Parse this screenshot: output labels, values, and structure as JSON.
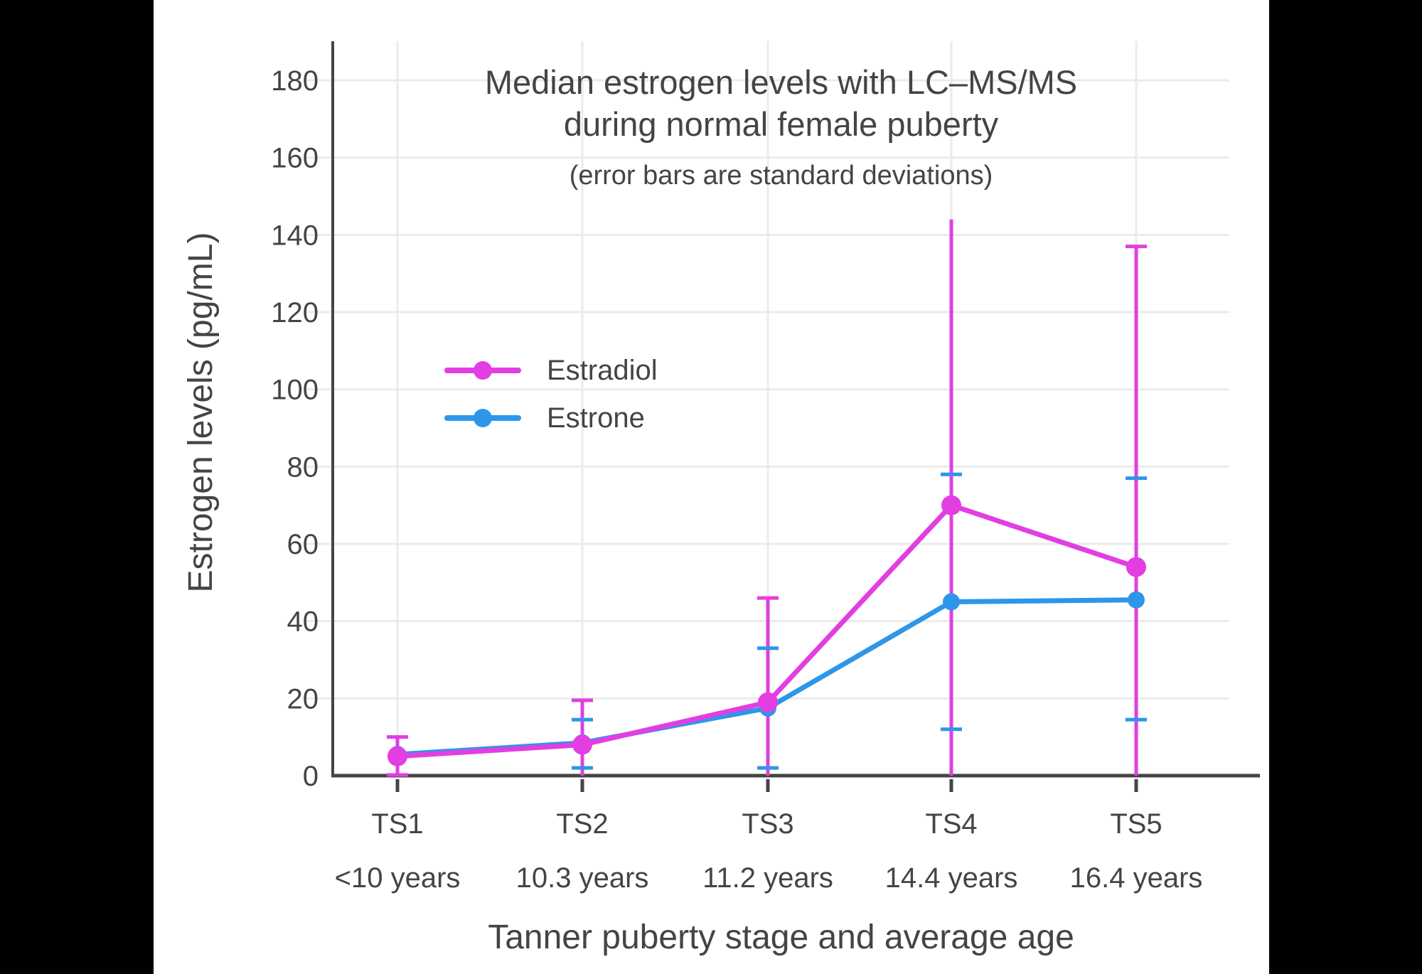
{
  "frame_color": "#000000",
  "panel_color": "#ffffff",
  "text_color": "#444444",
  "grid_color": "#ebebeb",
  "axis_color": "#444444",
  "chart_data": {
    "type": "line",
    "title_lines": [
      "Median estrogen levels with LC–MS/MS",
      "during normal female puberty"
    ],
    "subtitle": "(error bars are standard deviations)",
    "xlabel": "Tanner puberty stage and average age",
    "ylabel": "Estrogen levels (pg/mL)",
    "categories": [
      "TS1",
      "TS2",
      "TS3",
      "TS4",
      "TS5"
    ],
    "category_sublabels": [
      "<10 years",
      "10.3 years",
      "11.2 years",
      "14.4 years",
      "16.4 years"
    ],
    "y_ticks": [
      0,
      20,
      40,
      60,
      80,
      100,
      120,
      140,
      160,
      180
    ],
    "ylim": [
      0,
      190
    ],
    "grid": true,
    "legend_position": "inside-upper-left",
    "error_bar_meaning": "standard deviations",
    "series": [
      {
        "name": "Estradiol",
        "color": "#e23ee2",
        "values": [
          5,
          8,
          19,
          70,
          54
        ],
        "err_hi": [
          10,
          19.5,
          46,
          144,
          137
        ],
        "err_lo": [
          0,
          0,
          0,
          0,
          0
        ],
        "cap_hi": [
          true,
          true,
          true,
          false,
          true
        ],
        "cap_lo": [
          true,
          false,
          false,
          false,
          false
        ]
      },
      {
        "name": "Estrone",
        "color": "#2e96e8",
        "values": [
          5.5,
          8.5,
          17.5,
          45,
          45.5
        ],
        "err_hi": [
          null,
          14.5,
          33,
          78,
          77
        ],
        "err_lo": [
          null,
          2,
          2,
          12,
          14.5
        ],
        "cap_hi": [
          false,
          true,
          true,
          true,
          true
        ],
        "cap_lo": [
          false,
          true,
          true,
          true,
          true
        ]
      }
    ]
  }
}
